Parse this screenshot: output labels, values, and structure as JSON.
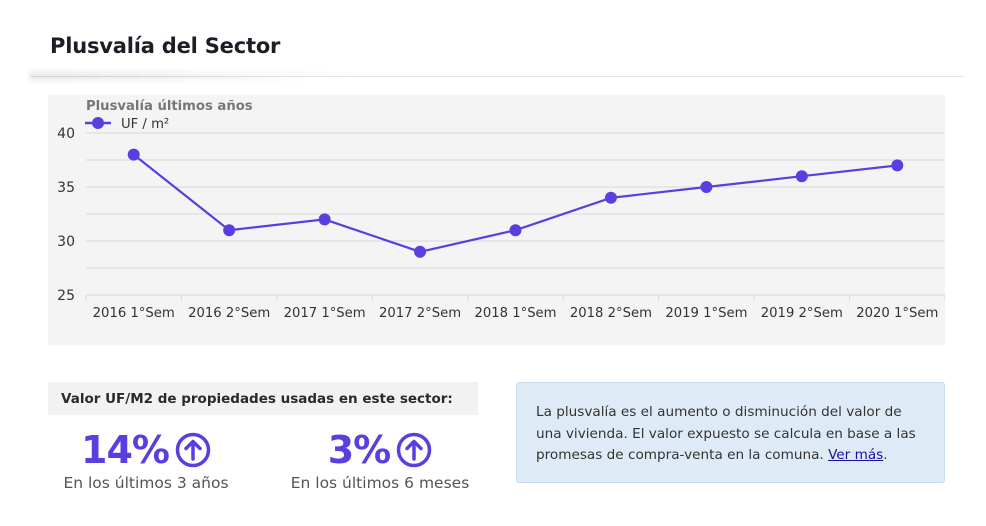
{
  "page": {
    "title": "Plusvalía del Sector"
  },
  "chart_data": {
    "type": "line",
    "title": "Plusvalía últimos años",
    "categories": [
      "2016 1°Sem",
      "2016 2°Sem",
      "2017 1°Sem",
      "2017 2°Sem",
      "2018 1°Sem",
      "2018 2°Sem",
      "2019 1°Sem",
      "2019 2°Sem",
      "2020 1°Sem"
    ],
    "series": [
      {
        "name": "UF / m²",
        "values": [
          38,
          31,
          32,
          29,
          31,
          34,
          35,
          36,
          37
        ],
        "color": "#5a3fe0"
      }
    ],
    "ylim": [
      25,
      40
    ],
    "yticks": [
      25,
      30,
      35,
      40
    ],
    "grid": true,
    "legend": "top-left"
  },
  "stats": {
    "title": "Valor UF/M2 de propiedades usadas en este sector:",
    "items": [
      {
        "value": "14%",
        "caption": "En los últimos 3 años",
        "icon": "arrow-up-circle-icon"
      },
      {
        "value": "3%",
        "caption": "En los últimos 6 meses",
        "icon": "arrow-up-circle-icon"
      }
    ]
  },
  "info": {
    "text": "La plusvalía es el aumento o disminución del valor de una vivienda. El valor expuesto se calcula en base a las promesas de compra-venta en la comuna. ",
    "link": "Ver más",
    "after_link": "."
  }
}
